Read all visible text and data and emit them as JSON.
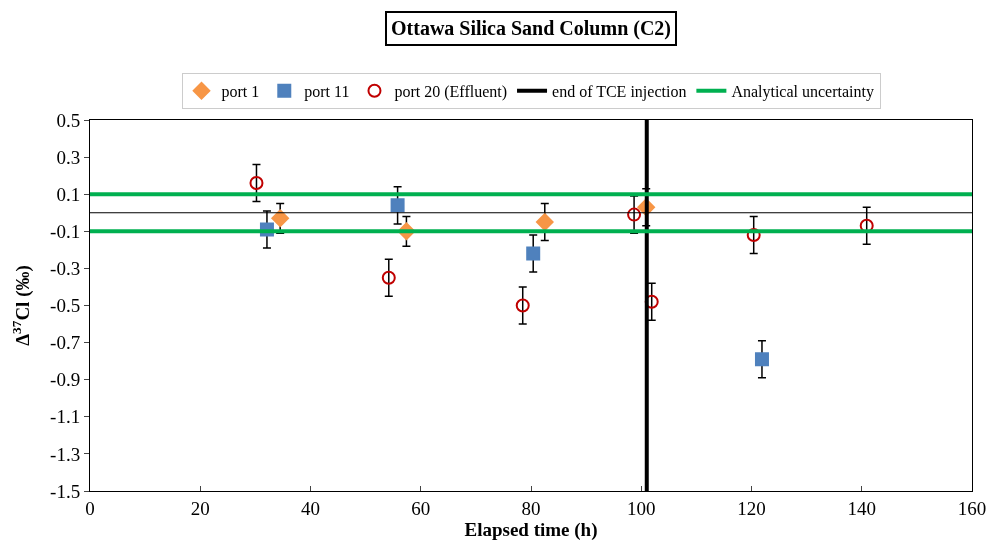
{
  "chart_data": {
    "type": "scatter",
    "title": "Ottawa Silica Sand Column (C2)",
    "xlabel": "Elapsed time (h)",
    "ylabel": "Δ$^{37}$Cl (‰)",
    "xlim": [
      0,
      160
    ],
    "xticks": [
      0,
      20,
      40,
      60,
      80,
      100,
      120,
      140,
      160
    ],
    "ylim": [
      -1.5,
      0.5
    ],
    "yticks": [
      -1.5,
      -1.3,
      -1.1,
      -0.9,
      -0.7,
      -0.5,
      -0.3,
      -0.1,
      0.1,
      0.3,
      0.5
    ],
    "legend": "top",
    "series": [
      {
        "name": "port 1",
        "color": "#f79646",
        "marker": "diamond",
        "x": [
          34.5,
          57.4,
          82.5,
          100.9
        ],
        "values": [
          -0.03,
          -0.1,
          -0.05,
          0.03
        ],
        "errors": [
          0.08,
          0.08,
          0.1,
          0.1
        ]
      },
      {
        "name": "port 11",
        "color": "#4f81bd",
        "marker": "square",
        "x": [
          32.1,
          55.8,
          80.4,
          121.9
        ],
        "values": [
          -0.09,
          0.04,
          -0.22,
          -0.79
        ],
        "errors": [
          0.1,
          0.1,
          0.1,
          0.1
        ]
      },
      {
        "name": "port 20 (Effluent)",
        "color": "#c00000",
        "marker": "circle-open",
        "x": [
          30.2,
          54.2,
          78.5,
          98.7,
          101.9,
          120.4,
          140.9
        ],
        "values": [
          0.16,
          -0.35,
          -0.5,
          -0.01,
          -0.48,
          -0.12,
          -0.07
        ],
        "errors": [
          0.1,
          0.1,
          0.1,
          0.1,
          0.1,
          0.1,
          0.1
        ]
      }
    ],
    "ref_lines": [
      {
        "axis": "x",
        "value": 101,
        "label": "end of TCE injection",
        "color": "#000000"
      },
      {
        "axis": "y",
        "value": 0.1,
        "label": "Analytical uncertainty",
        "color": "#00b050"
      },
      {
        "axis": "y",
        "value": -0.1,
        "color": "#00b050"
      }
    ]
  }
}
